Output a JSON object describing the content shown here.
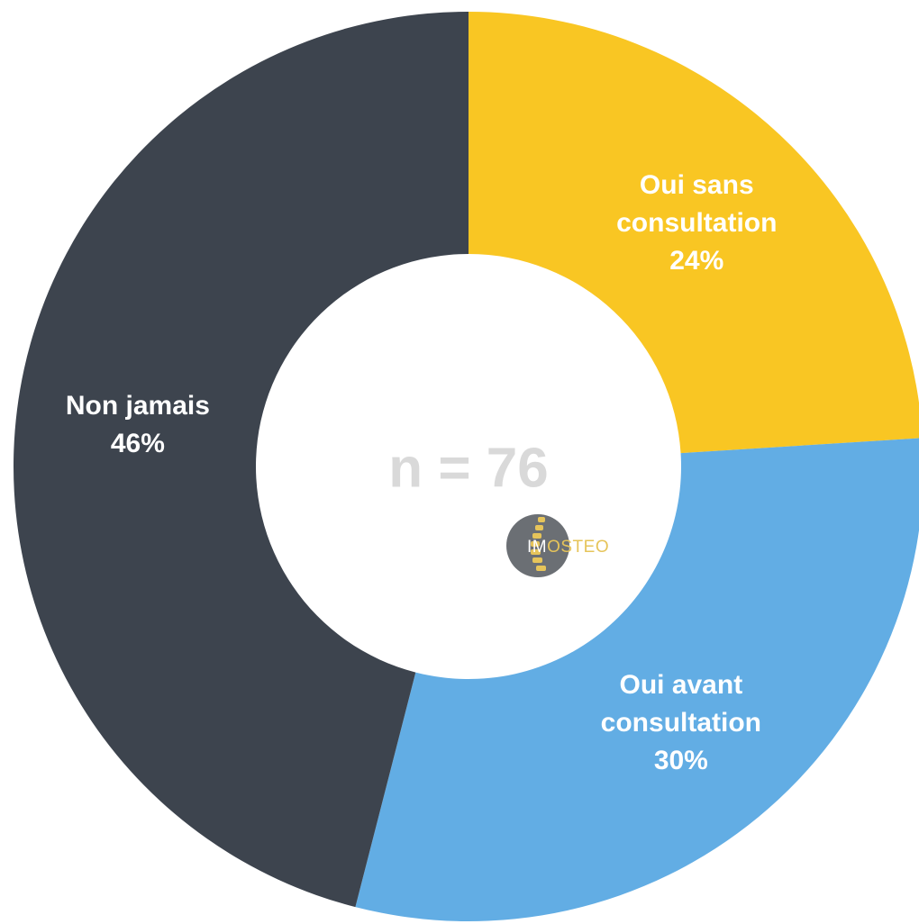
{
  "chart_data": {
    "type": "donut",
    "categories": [
      "Oui sans consultation",
      "Oui avant consultation",
      "Non jamais"
    ],
    "values": [
      24,
      30,
      46
    ],
    "value_labels": [
      "24%",
      "30%",
      "46%"
    ],
    "colors": [
      "#f9c623",
      "#62ade4",
      "#3d444e"
    ],
    "center_text": "n = 76",
    "watermark": [
      "IM",
      "OSTEO"
    ]
  }
}
